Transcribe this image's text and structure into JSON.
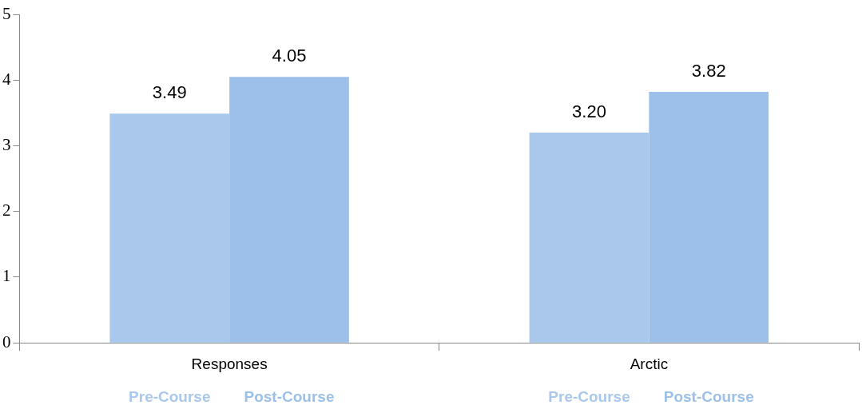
{
  "chart_data": {
    "type": "bar",
    "categories": [
      "Responses",
      "Arctic"
    ],
    "series": [
      {
        "name": "Pre-Course",
        "color": "#a9c8ec",
        "values": [
          3.49,
          3.2
        ],
        "value_labels": [
          "3.49",
          "3.20"
        ]
      },
      {
        "name": "Post-Course",
        "color": "#9dc0ea",
        "values": [
          4.05,
          3.82
        ],
        "value_labels": [
          "4.05",
          "3.82"
        ]
      }
    ],
    "ylim": [
      0,
      5
    ],
    "yticks": [
      0,
      1,
      2,
      3,
      4,
      5
    ],
    "grid": false,
    "legend": false
  }
}
